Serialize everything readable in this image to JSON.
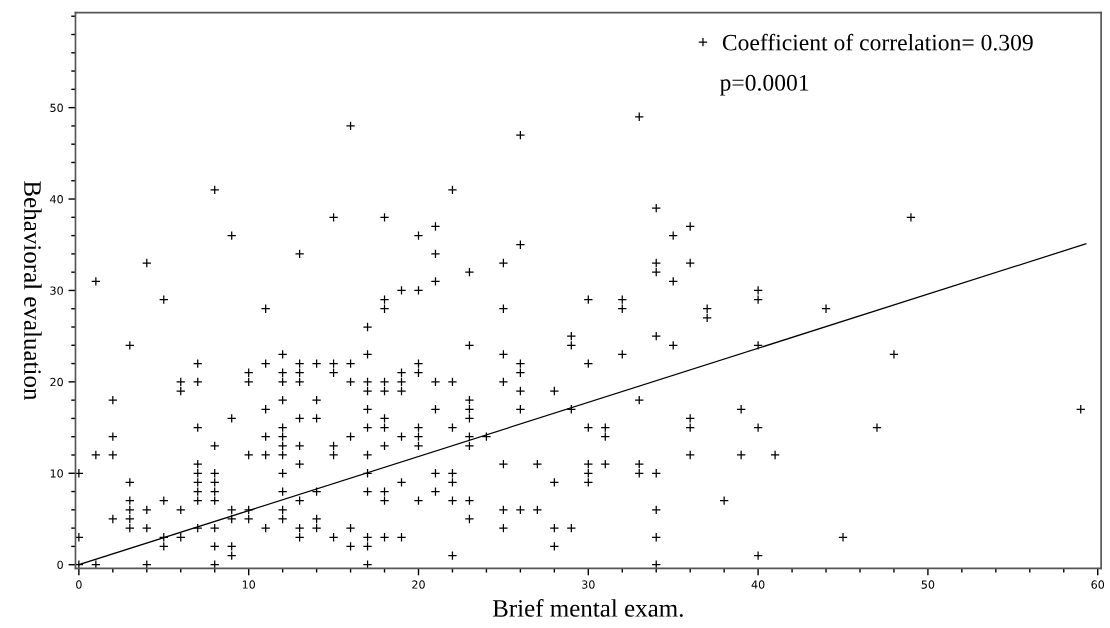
{
  "chart_data": {
    "type": "scatter",
    "xlabel": "Brief mental exam.",
    "ylabel": "Behavioral evaluation",
    "xlim": [
      -0.2,
      60.2
    ],
    "ylim": [
      -0.4,
      60.4
    ],
    "xticks": [
      0,
      {
        "value": 2,
        "label": null
      },
      {
        "value": 4,
        "label": null
      },
      {
        "value": 6,
        "label": null
      },
      {
        "value": 8,
        "label": null
      },
      10,
      {
        "value": 12,
        "label": null
      },
      {
        "value": 14,
        "label": null
      },
      {
        "value": 16,
        "label": null
      },
      {
        "value": 18,
        "label": null
      },
      20,
      {
        "value": 22,
        "label": null
      },
      {
        "value": 24,
        "label": null
      },
      {
        "value": 26,
        "label": null
      },
      {
        "value": 28,
        "label": null
      },
      30,
      {
        "value": 32,
        "label": null
      },
      {
        "value": 34,
        "label": null
      },
      {
        "value": 36,
        "label": null
      },
      {
        "value": 38,
        "label": null
      },
      40,
      {
        "value": 42,
        "label": null
      },
      {
        "value": 44,
        "label": null
      },
      {
        "value": 46,
        "label": null
      },
      {
        "value": 48,
        "label": null
      },
      50,
      {
        "value": 52,
        "label": null
      },
      {
        "value": 54,
        "label": null
      },
      {
        "value": 56,
        "label": null
      },
      {
        "value": 58,
        "label": null
      },
      60
    ],
    "yticks": [
      0,
      {
        "value": 2,
        "label": null
      },
      {
        "value": 4,
        "label": null
      },
      {
        "value": 6,
        "label": null
      },
      {
        "value": 8,
        "label": null
      },
      10,
      {
        "value": 12,
        "label": null
      },
      {
        "value": 14,
        "label": null
      },
      {
        "value": 16,
        "label": null
      },
      {
        "value": 18,
        "label": null
      },
      20,
      {
        "value": 22,
        "label": null
      },
      {
        "value": 24,
        "label": null
      },
      {
        "value": 26,
        "label": null
      },
      {
        "value": 28,
        "label": null
      },
      30,
      {
        "value": 32,
        "label": null
      },
      {
        "value": 34,
        "label": null
      },
      {
        "value": 36,
        "label": null
      },
      {
        "value": 38,
        "label": null
      },
      40,
      {
        "value": 42,
        "label": null
      },
      {
        "value": 44,
        "label": null
      },
      {
        "value": 46,
        "label": null
      },
      {
        "value": 48,
        "label": null
      },
      50,
      {
        "value": 52,
        "label": null
      },
      {
        "value": 54,
        "label": null
      },
      {
        "value": 56,
        "label": null
      },
      {
        "value": 58,
        "label": null
      },
      {
        "value": 60,
        "label": null
      }
    ],
    "grid": false,
    "legend": "top right",
    "annotations": [
      "p=0.0001"
    ],
    "series": [
      {
        "name": "Coefficient of correlation= 0.309",
        "marker": "cross",
        "color": "#000000",
        "x": [
          0,
          0,
          0,
          1,
          1,
          1,
          2,
          2,
          2,
          2,
          3,
          3,
          3,
          3,
          3,
          3,
          4,
          4,
          4,
          4,
          5,
          5,
          5,
          5,
          6,
          6,
          6,
          6,
          7,
          7,
          7,
          7,
          7,
          7,
          7,
          7,
          7,
          8,
          8,
          8,
          8,
          8,
          8,
          8,
          8,
          8,
          9,
          9,
          9,
          9,
          9,
          9,
          10,
          10,
          10,
          10,
          10,
          11,
          11,
          11,
          11,
          11,
          11,
          12,
          12,
          12,
          12,
          12,
          12,
          12,
          12,
          12,
          12,
          12,
          12,
          13,
          13,
          13,
          13,
          13,
          13,
          13,
          13,
          13,
          13,
          14,
          14,
          14,
          14,
          14,
          14,
          15,
          15,
          15,
          15,
          15,
          15,
          16,
          16,
          16,
          16,
          16,
          16,
          17,
          17,
          17,
          17,
          17,
          17,
          17,
          17,
          17,
          17,
          17,
          17,
          18,
          18,
          18,
          18,
          18,
          18,
          18,
          18,
          18,
          18,
          18,
          19,
          19,
          19,
          19,
          19,
          19,
          19,
          20,
          20,
          20,
          20,
          20,
          20,
          20,
          20,
          21,
          21,
          21,
          21,
          21,
          21,
          21,
          22,
          22,
          22,
          22,
          22,
          22,
          22,
          23,
          23,
          23,
          23,
          23,
          23,
          23,
          23,
          23,
          24,
          25,
          25,
          25,
          25,
          25,
          25,
          25,
          26,
          26,
          26,
          26,
          26,
          26,
          26,
          27,
          27,
          28,
          28,
          28,
          28,
          29,
          29,
          29,
          29,
          30,
          30,
          30,
          30,
          30,
          30,
          31,
          31,
          31,
          32,
          32,
          32,
          33,
          33,
          33,
          33,
          34,
          34,
          34,
          34,
          34,
          34,
          34,
          34,
          35,
          35,
          35,
          36,
          36,
          36,
          36,
          36,
          37,
          37,
          38,
          39,
          39,
          40,
          40,
          40,
          40,
          40,
          41,
          44,
          45,
          47,
          48,
          49,
          59
        ],
        "values": [
          10,
          3,
          0,
          31,
          12,
          0,
          18,
          14,
          12,
          5,
          24,
          9,
          7,
          6,
          5,
          4,
          33,
          6,
          4,
          0,
          29,
          7,
          3,
          2,
          20,
          19,
          6,
          3,
          22,
          20,
          15,
          11,
          10,
          9,
          8,
          7,
          4,
          41,
          13,
          10,
          9,
          8,
          7,
          4,
          2,
          0,
          36,
          16,
          6,
          5,
          2,
          1,
          21,
          20,
          12,
          6,
          5,
          28,
          22,
          17,
          14,
          12,
          4,
          23,
          21,
          20,
          18,
          15,
          14,
          13,
          12,
          10,
          8,
          6,
          5,
          34,
          22,
          21,
          20,
          16,
          13,
          11,
          7,
          4,
          3,
          22,
          18,
          16,
          8,
          5,
          4,
          38,
          22,
          21,
          13,
          12,
          3,
          48,
          22,
          20,
          14,
          4,
          2,
          26,
          23,
          20,
          19,
          17,
          15,
          12,
          10,
          8,
          3,
          2,
          0,
          38,
          29,
          28,
          20,
          19,
          16,
          15,
          13,
          8,
          7,
          3,
          30,
          21,
          20,
          19,
          14,
          9,
          3,
          36,
          30,
          22,
          21,
          15,
          14,
          13,
          7,
          37,
          34,
          31,
          20,
          17,
          10,
          8,
          41,
          20,
          15,
          10,
          9,
          7,
          1,
          32,
          24,
          18,
          17,
          16,
          14,
          13,
          7,
          5,
          14,
          33,
          28,
          23,
          20,
          11,
          6,
          4,
          47,
          35,
          22,
          21,
          19,
          17,
          6,
          11,
          6,
          19,
          9,
          4,
          2,
          25,
          24,
          17,
          4,
          29,
          22,
          15,
          11,
          10,
          9,
          15,
          14,
          11,
          29,
          28,
          23,
          49,
          18,
          11,
          10,
          39,
          33,
          32,
          25,
          10,
          6,
          3,
          0,
          36,
          31,
          24,
          37,
          33,
          16,
          15,
          12,
          28,
          27,
          7,
          17,
          12,
          30,
          29,
          24,
          15,
          1,
          12,
          28,
          3,
          15,
          23,
          38,
          17
        ]
      },
      {
        "type": "line",
        "color": "#000000",
        "x": [
          0,
          59.3
        ],
        "values": [
          0,
          35.1
        ]
      }
    ]
  }
}
